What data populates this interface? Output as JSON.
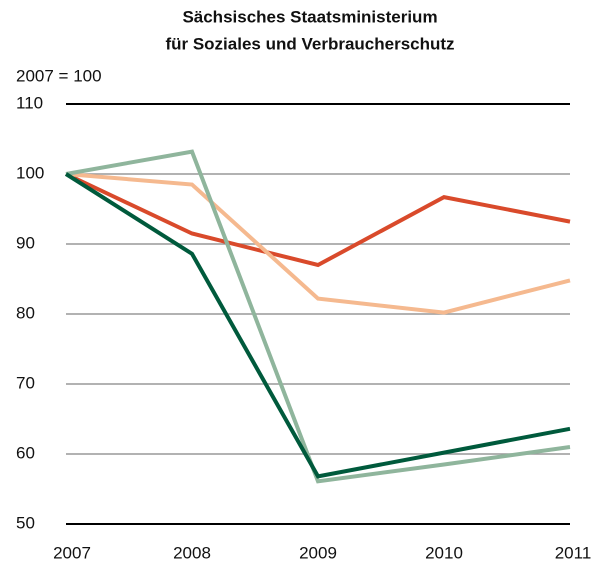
{
  "chart_data": {
    "type": "line",
    "title": [
      "Sächsisches Staatsministerium",
      "für Soziales und Verbraucherschutz"
    ],
    "y_label": "2007 = 100",
    "x": [
      2007,
      2008,
      2009,
      2010,
      2011
    ],
    "xlim": [
      2007,
      2011
    ],
    "xticks": [
      2007,
      2008,
      2009,
      2010,
      2011
    ],
    "ylim": [
      50,
      110
    ],
    "yticks": [
      50,
      60,
      70,
      80,
      90,
      100,
      110
    ],
    "grid": true,
    "series": [
      {
        "color": "#d94a2b",
        "values": [
          100,
          91.5,
          87,
          96.7,
          93.2
        ]
      },
      {
        "color": "#f5b98f",
        "values": [
          100,
          98.5,
          82.2,
          80.2,
          84.8
        ]
      },
      {
        "color": "#8fb59c",
        "values": [
          100,
          103.2,
          56.1,
          58.5,
          61
        ]
      },
      {
        "color": "#005a3c",
        "values": [
          100,
          88.6,
          56.8,
          60.2,
          63.6
        ]
      }
    ]
  }
}
